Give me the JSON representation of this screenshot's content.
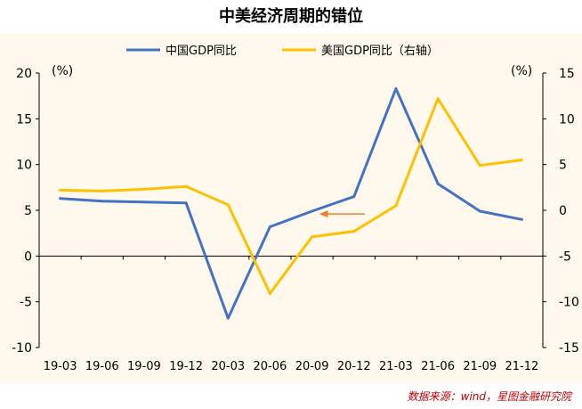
{
  "title": "中美经济周期的错位",
  "source": "数据来源：wind，星图金融研究院",
  "colors": {
    "china": "#4472c4",
    "us": "#ffc000",
    "arrow": "#ed7d31",
    "source": "#c00000"
  },
  "chart_data": {
    "type": "line",
    "title": "中美经济周期的错位",
    "categories": [
      "19-03",
      "19-06",
      "19-09",
      "19-12",
      "20-03",
      "20-06",
      "20-09",
      "20-12",
      "21-03",
      "21-06",
      "21-09",
      "21-12"
    ],
    "left_axis": {
      "unit": "(%)",
      "ylim": [
        -10,
        20
      ],
      "ticks": [
        -10,
        -5,
        0,
        5,
        10,
        15,
        20
      ]
    },
    "right_axis": {
      "unit": "(%)",
      "ylim": [
        -15,
        15
      ],
      "ticks": [
        -15,
        -10,
        -5,
        0,
        5,
        10,
        15
      ]
    },
    "legend_position": "top-center",
    "series": [
      {
        "name": "中国GDP同比",
        "axis": "left",
        "color": "#4472c4",
        "values": [
          6.3,
          6.0,
          5.9,
          5.8,
          -6.8,
          3.2,
          4.9,
          6.5,
          18.3,
          7.9,
          4.9,
          4.0
        ]
      },
      {
        "name": "美国GDP同比（右轴）",
        "axis": "right",
        "color": "#ffc000",
        "values": [
          2.2,
          2.1,
          2.3,
          2.6,
          0.6,
          -9.1,
          -2.9,
          -2.3,
          0.5,
          12.2,
          4.9,
          5.5
        ]
      }
    ],
    "annotation": {
      "type": "arrow",
      "direction": "left",
      "color": "#ed7d31",
      "x": "20-09 to 20-12",
      "left_axis_y": 4.6
    }
  }
}
